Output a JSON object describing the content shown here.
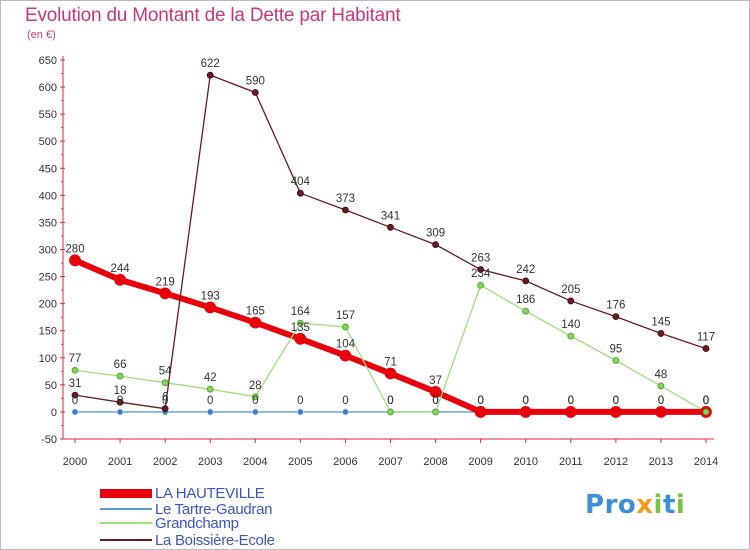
{
  "title": "Evolution du Montant de la Dette par Habitant",
  "unit": "(en €)",
  "logo": {
    "text": "Proxiti",
    "colors": [
      "#3b8ed8",
      "#f29a1d",
      "#7cc242"
    ]
  },
  "chart_data": {
    "type": "line",
    "x": [
      2000,
      2001,
      2002,
      2003,
      2004,
      2005,
      2006,
      2007,
      2008,
      2009,
      2010,
      2011,
      2012,
      2013,
      2014
    ],
    "ylim": [
      -50,
      650
    ],
    "yticks": [
      -50,
      0,
      50,
      100,
      150,
      200,
      250,
      300,
      350,
      400,
      450,
      500,
      550,
      600,
      650
    ],
    "grid": false,
    "legend": "bottom-left",
    "series": [
      {
        "name": "LA HAUTEVILLE",
        "color": "#e8000b",
        "values": [
          280,
          244,
          219,
          193,
          165,
          135,
          104,
          71,
          37,
          0,
          0,
          0,
          0,
          0,
          0
        ]
      },
      {
        "name": "Le Tartre-Gaudran",
        "color": "#5b9bd5",
        "values": [
          0,
          0,
          0,
          0,
          0,
          0,
          0,
          0,
          0,
          0,
          0,
          0,
          0,
          0,
          0
        ]
      },
      {
        "name": "Grandchamp",
        "color": "#9be07a",
        "values": [
          77,
          66,
          54,
          42,
          28,
          164,
          157,
          0,
          0,
          234,
          186,
          140,
          95,
          48,
          0
        ]
      },
      {
        "name": "La Boissière-Ecole",
        "color": "#6b1a22",
        "values": [
          31,
          18,
          6,
          622,
          590,
          404,
          373,
          341,
          309,
          263,
          242,
          205,
          176,
          145,
          117
        ]
      }
    ]
  }
}
